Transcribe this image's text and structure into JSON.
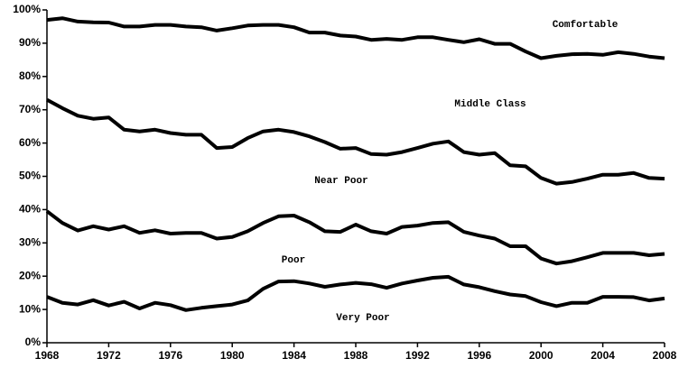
{
  "chart_data": {
    "type": "line",
    "x": [
      1968,
      1969,
      1970,
      1971,
      1972,
      1973,
      1974,
      1975,
      1976,
      1977,
      1978,
      1979,
      1980,
      1981,
      1982,
      1983,
      1984,
      1985,
      1986,
      1987,
      1988,
      1989,
      1990,
      1991,
      1992,
      1993,
      1994,
      1995,
      1996,
      1997,
      1998,
      1999,
      2000,
      2001,
      2002,
      2003,
      2004,
      2005,
      2006,
      2007,
      2008
    ],
    "series": [
      {
        "color": "#000000",
        "values": [
          97,
          97.5,
          96.5,
          96.3,
          96.2,
          95,
          95,
          95.5,
          95.5,
          95,
          94.8,
          93.8,
          94.5,
          95.3,
          95.5,
          95.5,
          94.8,
          93.2,
          93.2,
          92.3,
          92,
          91,
          91.3,
          91,
          91.8,
          91.8,
          91,
          90.3,
          91.2,
          89.8,
          89.8,
          87.5,
          85.5,
          86.2,
          86.7,
          86.8,
          86.5,
          87.3,
          86.8,
          86,
          85.5
        ]
      },
      {
        "color": "#000000",
        "values": [
          73,
          70.5,
          68.2,
          67.3,
          67.7,
          64,
          63.5,
          64,
          63,
          62.5,
          62.5,
          58.5,
          58.8,
          61.5,
          63.5,
          64,
          63.3,
          62,
          60.3,
          58.3,
          58.5,
          56.7,
          56.5,
          57.3,
          58.5,
          59.8,
          60.5,
          57.3,
          56.5,
          57,
          53.3,
          53,
          49.5,
          47.8,
          48.3,
          49.3,
          50.5,
          50.5,
          51,
          49.5,
          49.3
        ]
      },
      {
        "color": "#000000",
        "values": [
          39.5,
          36,
          33.7,
          35,
          34,
          35,
          33,
          33.8,
          32.8,
          33,
          33,
          31.3,
          31.8,
          33.5,
          36,
          38,
          38.2,
          36.2,
          33.5,
          33.3,
          35.5,
          33.5,
          32.8,
          34.8,
          35.2,
          36,
          36.2,
          33.3,
          32.2,
          31.3,
          29,
          29,
          25.3,
          23.8,
          24.5,
          25.7,
          27,
          27,
          27,
          26.3,
          26.7
        ]
      },
      {
        "color": "#000000",
        "values": [
          13.8,
          12,
          11.5,
          12.8,
          11.2,
          12.3,
          10.3,
          12,
          11.3,
          9.8,
          10.5,
          11,
          11.5,
          12.7,
          16.2,
          18.4,
          18.5,
          17.8,
          16.8,
          17.5,
          18,
          17.6,
          16.5,
          17.8,
          18.7,
          19.5,
          19.8,
          17.5,
          16.7,
          15.5,
          14.5,
          14,
          12.2,
          11,
          12,
          12,
          13.8,
          13.8,
          13.7,
          12.7,
          13.3
        ]
      }
    ],
    "annotations": [
      "Comfortable",
      "Middle Class",
      "Near Poor",
      "Poor",
      "Very Poor"
    ],
    "xlim": [
      1968,
      2008
    ],
    "xticks": [
      1968,
      1972,
      1976,
      1980,
      1984,
      1988,
      1992,
      1996,
      2000,
      2004,
      2008
    ],
    "ylim": [
      0,
      100
    ],
    "yticks": [
      {
        "value": 0,
        "label": "0%"
      },
      {
        "value": 10,
        "label": "10%"
      },
      {
        "value": 20,
        "label": "20%"
      },
      {
        "value": 30,
        "label": "30%"
      },
      {
        "value": 40,
        "label": "40%"
      },
      {
        "value": 50,
        "label": "50%"
      },
      {
        "value": 60,
        "label": "60%"
      },
      {
        "value": 70,
        "label": "70%"
      },
      {
        "value": 80,
        "label": "80%"
      },
      {
        "value": 90,
        "label": "90%"
      },
      {
        "value": 100,
        "label": "100%"
      }
    ]
  }
}
